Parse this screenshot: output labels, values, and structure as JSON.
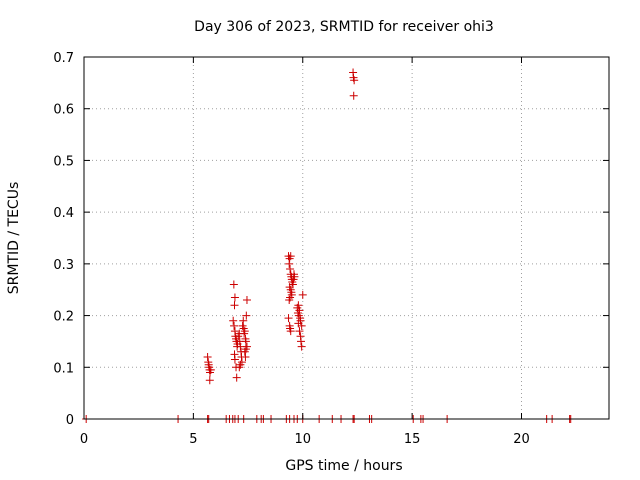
{
  "chart_data": {
    "type": "scatter",
    "title": "Day 306 of 2023, SRMTID for receiver ohi3",
    "xlabel": "GPS time / hours",
    "ylabel": "SRMTID / TECUs",
    "xlim": [
      0,
      24
    ],
    "ylim": [
      0,
      0.7
    ],
    "xticks": [
      0,
      5,
      10,
      15,
      20
    ],
    "xtick_labels": [
      "0",
      "5",
      "10",
      "15",
      "20"
    ],
    "yticks": [
      0,
      0.1,
      0.2,
      0.3,
      0.4,
      0.5,
      0.6,
      0.7
    ],
    "ytick_labels": [
      "0",
      "0.1",
      "0.2",
      "0.3",
      "0.4",
      "0.5",
      "0.6",
      "0.7"
    ],
    "grid": true,
    "marker": "+",
    "color": "#cc0000",
    "series": [
      {
        "name": "SRMTID",
        "points": [
          [
            0.1,
            0
          ],
          [
            4.3,
            0
          ],
          [
            5.65,
            0
          ],
          [
            5.7,
            0
          ],
          [
            6.5,
            0
          ],
          [
            6.65,
            0
          ],
          [
            6.8,
            0
          ],
          [
            6.9,
            0
          ],
          [
            7.05,
            0
          ],
          [
            7.3,
            0
          ],
          [
            7.9,
            0
          ],
          [
            8.1,
            0
          ],
          [
            8.2,
            0
          ],
          [
            8.55,
            0
          ],
          [
            9.25,
            0
          ],
          [
            9.4,
            0
          ],
          [
            9.6,
            0
          ],
          [
            9.75,
            0
          ],
          [
            10.0,
            0
          ],
          [
            10.75,
            0
          ],
          [
            11.35,
            0
          ],
          [
            11.75,
            0
          ],
          [
            12.3,
            0
          ],
          [
            12.35,
            0
          ],
          [
            13.05,
            0
          ],
          [
            13.15,
            0
          ],
          [
            15.05,
            0
          ],
          [
            15.4,
            0
          ],
          [
            15.5,
            0
          ],
          [
            16.6,
            0
          ],
          [
            21.15,
            0
          ],
          [
            21.4,
            0
          ],
          [
            22.2,
            0
          ],
          [
            22.25,
            0
          ],
          [
            5.65,
            0.12
          ],
          [
            5.68,
            0.11
          ],
          [
            5.7,
            0.105
          ],
          [
            5.72,
            0.1
          ],
          [
            5.74,
            0.095
          ],
          [
            5.76,
            0.09
          ],
          [
            5.75,
            0.075
          ],
          [
            5.8,
            0.095
          ],
          [
            6.85,
            0.26
          ],
          [
            6.9,
            0.235
          ],
          [
            6.88,
            0.22
          ],
          [
            6.82,
            0.19
          ],
          [
            6.86,
            0.18
          ],
          [
            6.9,
            0.17
          ],
          [
            6.92,
            0.16
          ],
          [
            6.95,
            0.155
          ],
          [
            6.97,
            0.15
          ],
          [
            7.0,
            0.14
          ],
          [
            7.02,
            0.145
          ],
          [
            6.88,
            0.125
          ],
          [
            6.9,
            0.115
          ],
          [
            6.95,
            0.1
          ],
          [
            6.98,
            0.08
          ],
          [
            7.05,
            0.16
          ],
          [
            7.1,
            0.165
          ],
          [
            7.12,
            0.15
          ],
          [
            7.15,
            0.14
          ],
          [
            7.18,
            0.13
          ],
          [
            7.2,
            0.12
          ],
          [
            7.22,
            0.11
          ],
          [
            7.25,
            0.18
          ],
          [
            7.28,
            0.19
          ],
          [
            7.3,
            0.175
          ],
          [
            7.32,
            0.165
          ],
          [
            7.35,
            0.17
          ],
          [
            7.38,
            0.155
          ],
          [
            7.4,
            0.15
          ],
          [
            7.42,
            0.2
          ],
          [
            7.45,
            0.23
          ],
          [
            7.35,
            0.13
          ],
          [
            7.38,
            0.12
          ],
          [
            7.4,
            0.135
          ],
          [
            7.45,
            0.14
          ],
          [
            7.1,
            0.1
          ],
          [
            7.15,
            0.105
          ],
          [
            9.35,
            0.315
          ],
          [
            9.4,
            0.31
          ],
          [
            9.45,
            0.315
          ],
          [
            9.38,
            0.3
          ],
          [
            9.42,
            0.29
          ],
          [
            9.45,
            0.28
          ],
          [
            9.48,
            0.275
          ],
          [
            9.5,
            0.27
          ],
          [
            9.52,
            0.265
          ],
          [
            9.55,
            0.26
          ],
          [
            9.4,
            0.255
          ],
          [
            9.45,
            0.25
          ],
          [
            9.48,
            0.245
          ],
          [
            9.5,
            0.24
          ],
          [
            9.38,
            0.23
          ],
          [
            9.42,
            0.235
          ],
          [
            9.6,
            0.28
          ],
          [
            9.62,
            0.275
          ],
          [
            9.58,
            0.27
          ],
          [
            9.35,
            0.195
          ],
          [
            9.4,
            0.18
          ],
          [
            9.42,
            0.175
          ],
          [
            9.45,
            0.17
          ],
          [
            9.75,
            0.215
          ],
          [
            9.8,
            0.22
          ],
          [
            9.85,
            0.21
          ],
          [
            9.78,
            0.205
          ],
          [
            9.82,
            0.2
          ],
          [
            9.88,
            0.195
          ],
          [
            9.9,
            0.19
          ],
          [
            9.95,
            0.18
          ],
          [
            10.0,
            0.24
          ],
          [
            9.85,
            0.17
          ],
          [
            9.9,
            0.16
          ],
          [
            9.92,
            0.15
          ],
          [
            9.95,
            0.14
          ],
          [
            9.8,
            0.185
          ],
          [
            12.3,
            0.67
          ],
          [
            12.32,
            0.66
          ],
          [
            12.35,
            0.655
          ],
          [
            12.33,
            0.625
          ]
        ]
      }
    ]
  }
}
